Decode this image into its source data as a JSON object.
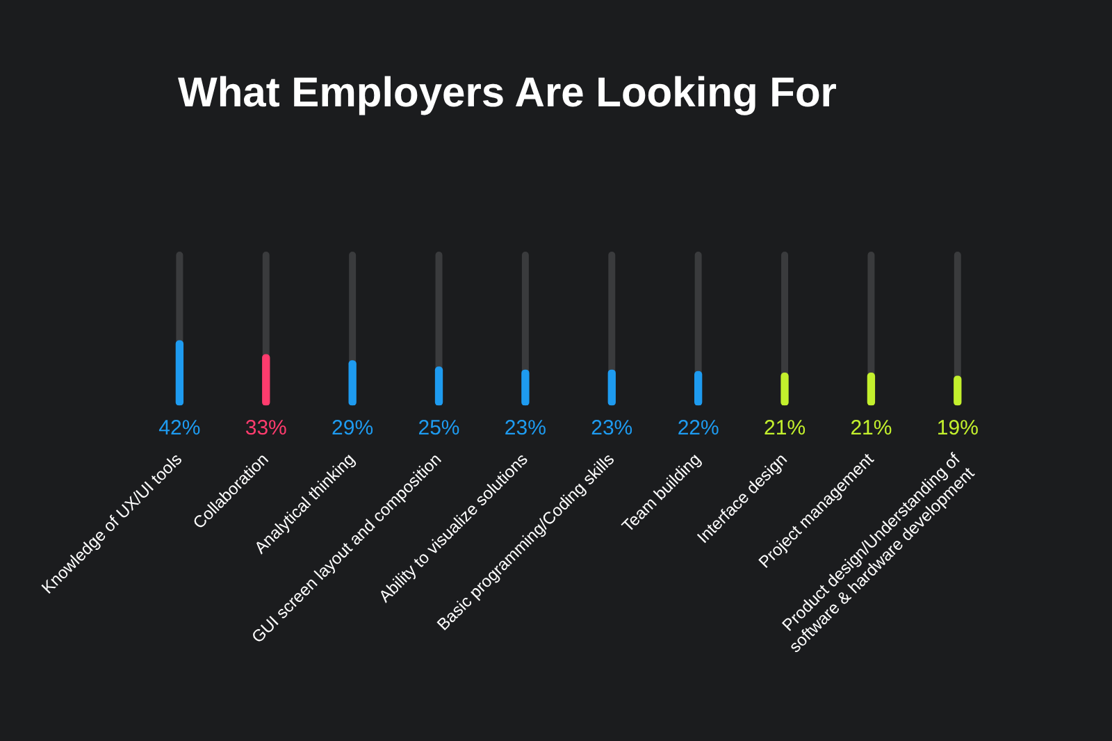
{
  "chart_data": {
    "type": "bar",
    "title": "What Employers Are Looking For",
    "categories": [
      "Knowledge of UX/UI tools",
      "Collaboration",
      "Analytical thinking",
      "GUI screen layout and composition",
      "Ability to visualize solutions",
      "Basic programming/Coding skills",
      "Team building",
      "Interface design",
      "Project management",
      "Product design/Understanding of\nsoftware & hardware development"
    ],
    "values": [
      42,
      33,
      29,
      25,
      23,
      23,
      22,
      21,
      21,
      19
    ],
    "colors": [
      "#1e9bf0",
      "#ff3c6e",
      "#1e9bf0",
      "#1e9bf0",
      "#1e9bf0",
      "#1e9bf0",
      "#1e9bf0",
      "#c3f02d",
      "#c3f02d",
      "#c3f02d"
    ],
    "value_labels": [
      "42%",
      "33%",
      "29%",
      "25%",
      "23%",
      "23%",
      "22%",
      "21%",
      "21%",
      "19%"
    ],
    "ylim": [
      0,
      100
    ]
  }
}
